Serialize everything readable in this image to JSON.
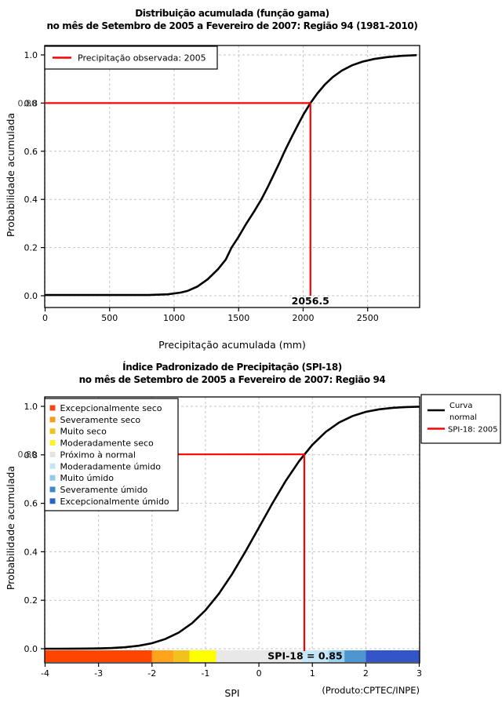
{
  "chart_data": [
    {
      "type": "line",
      "title": "Distribuição acumulada (função gama)",
      "subtitle": "no mês de Setembro de 2005 a Fevereiro de 2007: Região 94 (1981-2010)",
      "xlabel": "Precipitação acumulada (mm)",
      "ylabel": "Probabilidade acumulada",
      "xlim": [
        0,
        2900
      ],
      "ylim": [
        0,
        1
      ],
      "grid": true,
      "x_ticks": [
        "0",
        "500",
        "1000",
        "1500",
        "2000",
        "2500"
      ],
      "x_tick_values": [
        0,
        500,
        1000,
        1500,
        2000,
        2500
      ],
      "y_ticks": [
        "0.0",
        "0.2",
        "0.4",
        "0.6",
        "0.8",
        "1.0"
      ],
      "y_tick_values": [
        0,
        0.2,
        0.4,
        0.6,
        0.8,
        1.0
      ],
      "series": [
        {
          "name": "Distribuição acumulada (função gama)",
          "color": "#000000",
          "points": [
            [
              0,
              0.003
            ],
            [
              500,
              0.003
            ],
            [
              800,
              0.003
            ],
            [
              950,
              0.006
            ],
            [
              1050,
              0.013
            ],
            [
              1103,
              0.02
            ],
            [
              1180,
              0.038
            ],
            [
              1260,
              0.068
            ],
            [
              1340,
              0.11
            ],
            [
              1400,
              0.15
            ],
            [
              1445,
              0.2
            ],
            [
              1500,
              0.245
            ],
            [
              1560,
              0.3
            ],
            [
              1620,
              0.35
            ],
            [
              1676,
              0.4
            ],
            [
              1725,
              0.45
            ],
            [
              1770,
              0.5
            ],
            [
              1815,
              0.55
            ],
            [
              1857,
              0.6
            ],
            [
              1905,
              0.652
            ],
            [
              1955,
              0.705
            ],
            [
              2005,
              0.755
            ],
            [
              2056.5,
              0.8
            ],
            [
              2110,
              0.84
            ],
            [
              2170,
              0.878
            ],
            [
              2230,
              0.908
            ],
            [
              2300,
              0.935
            ],
            [
              2380,
              0.957
            ],
            [
              2460,
              0.972
            ],
            [
              2550,
              0.983
            ],
            [
              2650,
              0.991
            ],
            [
              2760,
              0.996
            ],
            [
              2880,
              0.999
            ]
          ]
        }
      ],
      "marker": {
        "x": 2056.5,
        "y": 0.8,
        "x_label": "2056.5",
        "y_label": "0.80",
        "color": "#FF0000"
      },
      "legend": {
        "position": "top-left",
        "items": [
          {
            "label": "Precipitação observada: 2005",
            "color": "#FF0000",
            "type": "line"
          }
        ]
      }
    },
    {
      "type": "line",
      "title": "Índice Padronizado de Precipitação (SPI-18)",
      "subtitle": "no mês de Setembro de 2005 a Fevereiro de 2007: Região 94",
      "xlabel": "SPI",
      "ylabel": "Probabilidade acumulada",
      "footer": "(Produto:CPTEC/INPE)",
      "xlim": [
        -4,
        3
      ],
      "ylim": [
        0,
        1
      ],
      "grid": true,
      "x_ticks": [
        "-4",
        "-3",
        "-2",
        "-1",
        "0",
        "1",
        "2",
        "3"
      ],
      "x_tick_values": [
        -4,
        -3,
        -2,
        -1,
        0,
        1,
        2,
        3
      ],
      "y_ticks": [
        "0.0",
        "0.2",
        "0.4",
        "0.6",
        "0.8",
        "1.0"
      ],
      "y_tick_values": [
        0,
        0.2,
        0.4,
        0.6,
        0.8,
        1.0
      ],
      "series": [
        {
          "name": "Curva normal",
          "color": "#000000",
          "points": [
            [
              -4,
              0.0001
            ],
            [
              -3.75,
              0.0001
            ],
            [
              -3.5,
              0.0002
            ],
            [
              -3.25,
              0.0006
            ],
            [
              -3,
              0.0013
            ],
            [
              -2.75,
              0.003
            ],
            [
              -2.5,
              0.0062
            ],
            [
              -2.25,
              0.0122
            ],
            [
              -2,
              0.0228
            ],
            [
              -1.75,
              0.0401
            ],
            [
              -1.5,
              0.0668
            ],
            [
              -1.25,
              0.1056
            ],
            [
              -1,
              0.1587
            ],
            [
              -0.75,
              0.2266
            ],
            [
              -0.5,
              0.3085
            ],
            [
              -0.25,
              0.4013
            ],
            [
              0,
              0.5
            ],
            [
              0.25,
              0.5987
            ],
            [
              0.5,
              0.6915
            ],
            [
              0.75,
              0.7734
            ],
            [
              1,
              0.8413
            ],
            [
              1.25,
              0.8944
            ],
            [
              1.5,
              0.9332
            ],
            [
              1.75,
              0.9599
            ],
            [
              2,
              0.9772
            ],
            [
              2.25,
              0.9878
            ],
            [
              2.5,
              0.9938
            ],
            [
              2.75,
              0.997
            ],
            [
              3,
              0.9987
            ]
          ]
        }
      ],
      "marker": {
        "x": 0.85,
        "y": 0.802,
        "band_label": "SPI-18 = 0.85",
        "y_label": "0.80",
        "color": "#FF0000"
      },
      "legend_right": {
        "position": "top-right",
        "items": [
          {
            "label_lines": [
              "Curva",
              "normal"
            ],
            "color": "#000000",
            "type": "line"
          },
          {
            "label_lines": [
              "SPI-18: 2005"
            ],
            "color": "#FF0000",
            "type": "line"
          }
        ]
      },
      "legend_categories": {
        "position": "top-left",
        "items": [
          {
            "label": "Excepcionalmente seco",
            "color": "#F1491F"
          },
          {
            "label": "Severamente seco",
            "color": "#F89C1B"
          },
          {
            "label": "Muito seco",
            "color": "#EFC31D"
          },
          {
            "label": "Moderadamente seco",
            "color": "#FBF32A"
          },
          {
            "label": "Próximo à normal",
            "color": "#E4E4E4"
          },
          {
            "label": "Moderadamente úmido",
            "color": "#C3E6F7"
          },
          {
            "label": "Muito úmido",
            "color": "#90CBE9"
          },
          {
            "label": "Severamente úmido",
            "color": "#3E87C8"
          },
          {
            "label": "Excepcionalmente úmido",
            "color": "#2A62C6"
          }
        ]
      },
      "band": {
        "segments": [
          {
            "from": -4,
            "to": -2,
            "color": "#FF4500",
            "label": "Excepcionalmente seco"
          },
          {
            "from": -2,
            "to": -1.6,
            "color": "#FFA41C",
            "label": "Severamente seco"
          },
          {
            "from": -1.6,
            "to": -1.3,
            "color": "#F2C11E",
            "label": "Muito seco"
          },
          {
            "from": -1.3,
            "to": -0.8,
            "color": "#FFFF00",
            "label": "Moderadamente seco"
          },
          {
            "from": -0.8,
            "to": 0.8,
            "color": "#E8E8E8",
            "label": "Próximo à normal"
          },
          {
            "from": 0.8,
            "to": 1.3,
            "color": "#C5E7F8",
            "label": "Moderadamente úmido"
          },
          {
            "from": 1.3,
            "to": 1.6,
            "color": "#9AD1EE",
            "label": "Muito úmido"
          },
          {
            "from": 1.6,
            "to": 2,
            "color": "#4E96D0",
            "label": "Severamente úmido"
          },
          {
            "from": 2,
            "to": 3,
            "color": "#3355C8",
            "label": "Excepcionalmente úmido"
          }
        ]
      }
    }
  ],
  "colors": {
    "marker_red": "#FF0000",
    "curve_black": "#000000",
    "grid_gray": "#C4C4C4"
  }
}
